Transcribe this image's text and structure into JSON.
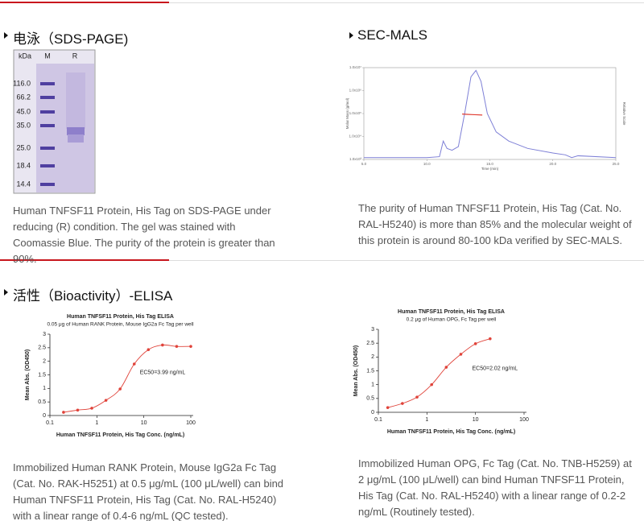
{
  "sds_page": {
    "title": "电泳（SDS-PAGE)",
    "gel": {
      "unit_label": "kDa",
      "lanes": [
        "M",
        "R"
      ],
      "markers": [
        "116.0",
        "66.2",
        "45.0",
        "35.0",
        "25.0",
        "18.4",
        "14.4"
      ]
    },
    "caption": "Human TNFSF11 Protein, His Tag on SDS-PAGE under reducing (R) condition. The gel was stained with Coomassie Blue. The purity of the protein is greater than 90%."
  },
  "sec_mals": {
    "title": "SEC-MALS",
    "chart_data": {
      "type": "line",
      "x_label": "Time (min)",
      "y_label": "Molar Mass (g/mol)",
      "y2_label": "Relative Scale",
      "xlim": [
        5,
        25
      ],
      "xticks": [
        {
          "value": 5,
          "label": "5.0"
        },
        {
          "value": 10,
          "label": "10.0"
        },
        {
          "value": 15,
          "label": "15.0"
        },
        {
          "value": 20,
          "label": "20.0"
        },
        {
          "value": 25,
          "label": "25.0"
        }
      ],
      "ylog": true,
      "ylim": [
        1000,
        10000000
      ],
      "yticks": [
        {
          "value": 1000,
          "label": "1.0x10³"
        },
        {
          "value": 10000,
          "label": "1.0x10⁴"
        },
        {
          "value": 100000,
          "label": "1.0x10⁵"
        },
        {
          "value": 1000000,
          "label": "1.0x10⁶"
        },
        {
          "value": 10000000,
          "label": "1.0x10⁷"
        }
      ],
      "y2lim": [
        0,
        1
      ],
      "series": [
        {
          "axis": "y2",
          "color": "#7d7fd6",
          "x": [
            5,
            8,
            10,
            11,
            11.3,
            11.6,
            12,
            12.5,
            13,
            13.5,
            13.9,
            14.3,
            14.8,
            15.5,
            16.5,
            18,
            20,
            21,
            21.5,
            22,
            25
          ],
          "values": [
            0.02,
            0.02,
            0.02,
            0.03,
            0.2,
            0.12,
            0.1,
            0.14,
            0.5,
            0.9,
            0.97,
            0.85,
            0.5,
            0.3,
            0.2,
            0.12,
            0.07,
            0.05,
            0.02,
            0.04,
            0.02
          ]
        },
        {
          "color": "#e03c31",
          "x": [
            12.8,
            13.2,
            13.6,
            14.0,
            14.4
          ],
          "values": [
            95000,
            92000,
            90000,
            88000,
            86000
          ]
        }
      ]
    },
    "caption": "The purity of Human TNFSF11 Protein, His Tag (Cat. No. RAL-H5240) is more than 85% and the molecular weight of this protein is around 80-100 kDa verified by SEC-MALS."
  },
  "elisa": {
    "title": "活性（Bioactivity）-ELISA",
    "panels": [
      {
        "chart_data": {
          "type": "scatter",
          "title": "Human TNFSF11 Protein, His Tag ELISA",
          "subtitle": "0.05 μg of Human RANK Protein, Mouse IgG2a Fc Tag per well",
          "x_label": "Human TNFSF11 Protein, His Tag Conc. (ng/mL)",
          "y_label": "Mean Abs. (OD450)",
          "annotation": "EC50=3.99 ng/mL",
          "xlog": true,
          "xlim": [
            0.1,
            100
          ],
          "xticks": [
            0.1,
            1,
            10,
            100
          ],
          "ylim": [
            0,
            3
          ],
          "yticks": [
            0,
            0.5,
            1,
            1.5,
            2,
            2.5,
            3
          ],
          "color": "#e0433a",
          "fit_line": true,
          "x": [
            0.195,
            0.39,
            0.78,
            1.56,
            3.125,
            6.25,
            12.5,
            25,
            50,
            100
          ],
          "values": [
            0.12,
            0.2,
            0.27,
            0.56,
            0.98,
            1.9,
            2.43,
            2.6,
            2.55,
            2.55
          ]
        },
        "caption": "Immobilized Human RANK Protein, Mouse IgG2a Fc Tag (Cat. No. RAK-H5251) at 0.5 μg/mL (100 μL/well) can bind Human TNFSF11 Protein, His Tag (Cat. No. RAL-H5240) with a linear range of 0.4-6 ng/mL (QC tested)."
      },
      {
        "chart_data": {
          "type": "scatter",
          "title": "Human TNFSF11 Protein, His Tag ELISA",
          "subtitle": "0.2 μg of Human OPG, Fc Tag per well",
          "x_label": "Human TNFSF11 Protein, His Tag Conc. (ng/mL)",
          "y_label": "Mean Abs. (OD450)",
          "annotation": "EC50=2.02 ng/mL",
          "xlog": true,
          "xlim": [
            0.1,
            100
          ],
          "xticks": [
            0.1,
            1,
            10,
            100
          ],
          "ylim": [
            0,
            3
          ],
          "yticks": [
            0,
            0.5,
            1,
            1.5,
            2,
            2.5,
            3
          ],
          "color": "#e0433a",
          "fit_line": true,
          "x": [
            0.156,
            0.3125,
            0.625,
            1.25,
            2.5,
            5,
            10,
            20
          ],
          "values": [
            0.17,
            0.32,
            0.55,
            1.0,
            1.63,
            2.1,
            2.48,
            2.66
          ]
        },
        "caption": "Immobilized Human OPG, Fc Tag (Cat. No. TNB-H5259) at 2 μg/mL (100 μL/well) can bind Human TNFSF11 Protein, His Tag (Cat. No. RAL-H5240) with a linear range of 0.2-2 ng/mL (Routinely tested)."
      }
    ]
  }
}
